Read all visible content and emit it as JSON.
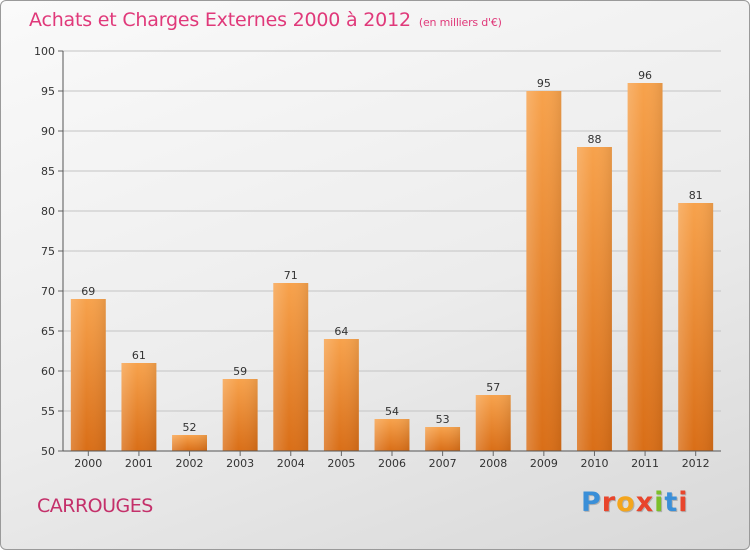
{
  "header": {
    "title": "Achats et Charges Externes 2000 à 2012",
    "subtitle": "(en milliers d'€)"
  },
  "footer": {
    "commune": "CARROUGES",
    "logo_letters": [
      "P",
      "r",
      "o",
      "x",
      "i",
      "t",
      "i"
    ],
    "logo_colors": [
      "#3a8fd8",
      "#e8452c",
      "#f4a51c",
      "#e8452c",
      "#7cbf2a",
      "#3a8fd8",
      "#e8452c"
    ]
  },
  "chart_data": {
    "type": "bar",
    "title": "Achats et Charges Externes 2000 à 2012",
    "subtitle": "(en milliers d'€)",
    "categories": [
      "2000",
      "2001",
      "2002",
      "2003",
      "2004",
      "2005",
      "2006",
      "2007",
      "2008",
      "2009",
      "2010",
      "2011",
      "2012"
    ],
    "values": [
      69,
      61,
      52,
      59,
      71,
      64,
      54,
      53,
      57,
      95,
      88,
      96,
      81
    ],
    "value_labels": [
      "69",
      "61",
      "52",
      "59",
      "71",
      "64",
      "54",
      "53",
      "57",
      "95",
      "88",
      "96",
      "81"
    ],
    "ylim": [
      50,
      100
    ],
    "yticks": [
      50,
      55,
      60,
      65,
      70,
      75,
      80,
      85,
      90,
      95,
      100
    ],
    "ytick_labels": [
      "50",
      "55",
      "60",
      "65",
      "70",
      "75",
      "80",
      "85",
      "90",
      "95",
      "100"
    ],
    "grid": true,
    "bar_color_top": "#f7a24c",
    "bar_color_bottom": "#d96e17",
    "xlabel": "",
    "ylabel": ""
  }
}
